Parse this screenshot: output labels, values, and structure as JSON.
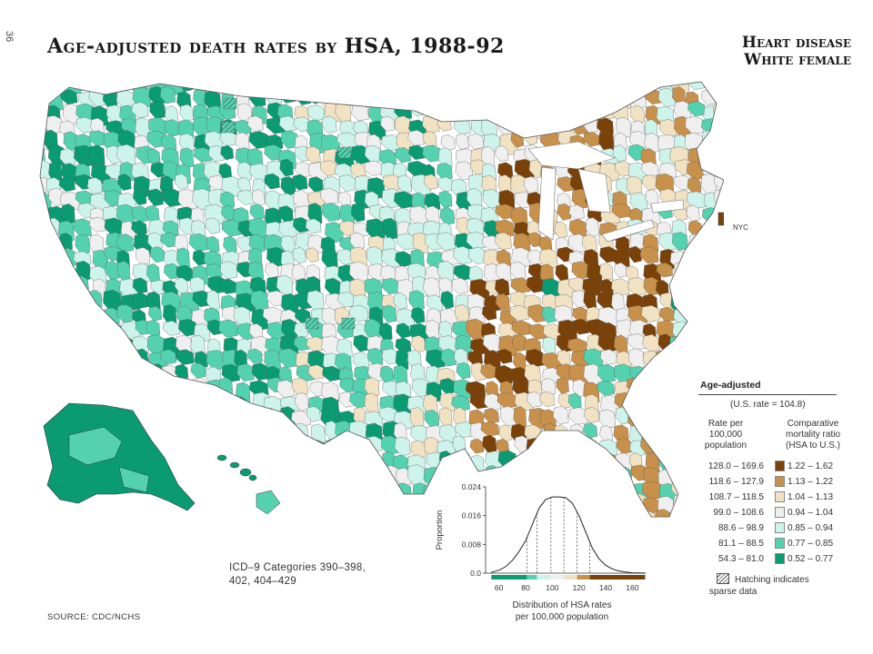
{
  "page_number": "36",
  "title": "Age-adjusted death rates by HSA, 1988-92",
  "subtitle_line1": "Heart disease",
  "subtitle_line2": "White female",
  "map_labels": {
    "nyc": "NYC"
  },
  "icd_line1": "ICD–9 Categories 390–398,",
  "icd_line2": "402, 404–429",
  "source": "SOURCE: CDC/NCHS",
  "legend": {
    "heading": "Age-adjusted",
    "us_rate": "(U.S. rate = 104.8)",
    "rate_header": [
      "Rate per",
      "100,000",
      "population"
    ],
    "cmr_header": [
      "Comparative",
      "mortality ratio",
      "(HSA to U.S.)"
    ],
    "rows": [
      {
        "rate": "128.0 – 169.6",
        "cmr": "1.22 – 1.62",
        "color": "#7a4208"
      },
      {
        "rate": "118.6 – 127.9",
        "cmr": "1.13 – 1.22",
        "color": "#c8914b"
      },
      {
        "rate": "108.7 – 118.5",
        "cmr": "1.04 – 1.13",
        "color": "#f1e2c4"
      },
      {
        "rate": "99.0 – 108.6",
        "cmr": "0.94 – 1.04",
        "color": "#efefef"
      },
      {
        "rate": "88.6 – 98.9",
        "cmr": "0.85 – 0.94",
        "color": "#cdf3ea"
      },
      {
        "rate": "81.1 – 88.5",
        "cmr": "0.77 – 0.85",
        "color": "#54d2b0"
      },
      {
        "rate": "54.3 – 81.0",
        "cmr": "0.52 – 0.77",
        "color": "#0a9b73"
      }
    ],
    "hatching_note": "Hatching indicates sparse data"
  },
  "chart_data": {
    "type": "area",
    "ylabel": "Proportion",
    "xlabel": "Distribution of HSA rates per 100,000 population",
    "xlabel_line1": "Distribution of HSA rates",
    "xlabel_line2": "per 100,000 population",
    "xlim": [
      50,
      170
    ],
    "ylim": [
      0,
      0.024
    ],
    "x_ticks": [
      60,
      80,
      100,
      120,
      140,
      160
    ],
    "y_ticks": [
      0.0,
      0.008,
      0.016,
      0.024
    ],
    "y_tick_labels": [
      "0.0",
      "0.008",
      "0.016",
      "0.024"
    ],
    "class_breaks": [
      81.1,
      88.6,
      99.0,
      108.7,
      118.6,
      128.0
    ],
    "x": [
      54,
      60,
      65,
      70,
      75,
      80,
      85,
      90,
      95,
      100,
      105,
      110,
      115,
      120,
      125,
      130,
      135,
      140,
      145,
      150,
      155,
      160,
      165,
      170
    ],
    "y": [
      0.0002,
      0.0008,
      0.0018,
      0.0035,
      0.006,
      0.009,
      0.0135,
      0.018,
      0.0205,
      0.0212,
      0.0212,
      0.021,
      0.0195,
      0.016,
      0.0115,
      0.007,
      0.004,
      0.0022,
      0.0012,
      0.0006,
      0.0003,
      0.0001,
      5e-05,
      0.0
    ],
    "color_bar": [
      {
        "from": 54.3,
        "to": 81.0,
        "color": "#0a9b73"
      },
      {
        "from": 81.1,
        "to": 88.5,
        "color": "#54d2b0"
      },
      {
        "from": 88.6,
        "to": 98.9,
        "color": "#cdf3ea"
      },
      {
        "from": 99.0,
        "to": 108.6,
        "color": "#efefef"
      },
      {
        "from": 108.7,
        "to": 118.5,
        "color": "#f1e2c4"
      },
      {
        "from": 118.6,
        "to": 127.9,
        "color": "#c8914b"
      },
      {
        "from": 128.0,
        "to": 169.6,
        "color": "#7a4208"
      }
    ]
  }
}
